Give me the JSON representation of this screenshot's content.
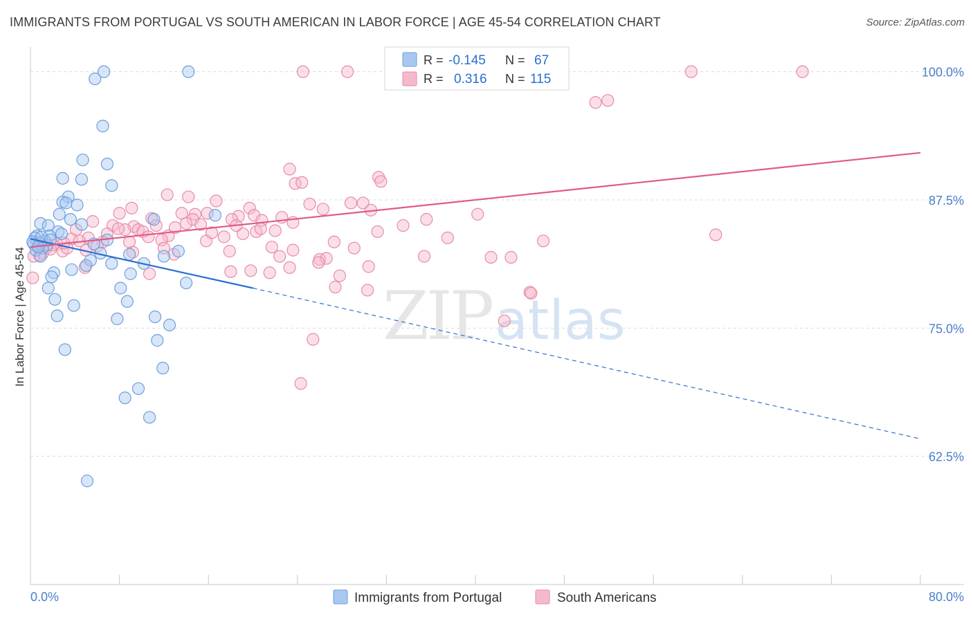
{
  "header": {
    "title": "IMMIGRANTS FROM PORTUGAL VS SOUTH AMERICAN IN LABOR FORCE | AGE 45-54 CORRELATION CHART",
    "source": "Source: ZipAtlas.com"
  },
  "watermark": {
    "zip": "ZIP",
    "atlas": "atlas"
  },
  "legend": {
    "r_label": "R =",
    "n_label": "N =",
    "rows": [
      {
        "r": "-0.145",
        "n": "67",
        "color": "#a9c8f0"
      },
      {
        "r": "0.316",
        "n": "115",
        "color": "#f6b8cc"
      }
    ]
  },
  "colors": {
    "blue_fill": "#a9c8f0",
    "blue_stroke": "#6c9fde",
    "blue_line": "#2a6fd1",
    "pink_fill": "#f6b8cc",
    "pink_stroke": "#e88aa8",
    "pink_line": "#e05a88",
    "grid": "#dcdcdc",
    "tick_text": "#4a7fc9"
  },
  "chart_data": {
    "type": "scatter",
    "title": "IMMIGRANTS FROM PORTUGAL VS SOUTH AMERICAN IN LABOR FORCE | AGE 45-54 CORRELATION CHART",
    "xlabel": "",
    "ylabel": "In Labor Force | Age 45-54",
    "xlim": [
      0,
      80
    ],
    "ylim": [
      50,
      102
    ],
    "x_tick_labels": [
      "0.0%",
      "80.0%"
    ],
    "y_ticks": [
      62.5,
      75.0,
      87.5,
      100.0
    ],
    "y_tick_labels": [
      "62.5%",
      "75.0%",
      "87.5%",
      "100.0%"
    ],
    "grid": true,
    "legend_position": "top-center",
    "series": [
      {
        "name": "Immigrants from Portugal",
        "r": -0.145,
        "n": 67,
        "trend": {
          "x": [
            0,
            20
          ],
          "y": [
            83.7,
            78.9
          ],
          "dashed_to": [
            80,
            64.2
          ]
        },
        "points": [
          [
            6.6,
            100
          ],
          [
            14.2,
            100
          ],
          [
            5.8,
            99.3
          ],
          [
            6.5,
            94.7
          ],
          [
            4.7,
            91.4
          ],
          [
            6.9,
            91.0
          ],
          [
            2.9,
            89.6
          ],
          [
            4.6,
            89.5
          ],
          [
            7.3,
            88.9
          ],
          [
            3.4,
            87.8
          ],
          [
            2.9,
            87.3
          ],
          [
            3.2,
            87.2
          ],
          [
            4.2,
            87.0
          ],
          [
            2.6,
            86.1
          ],
          [
            16.6,
            86.0
          ],
          [
            3.6,
            85.6
          ],
          [
            11.1,
            85.6
          ],
          [
            0.9,
            85.2
          ],
          [
            4.6,
            85.1
          ],
          [
            1.6,
            85.0
          ],
          [
            2.5,
            84.4
          ],
          [
            0.6,
            84.0
          ],
          [
            1.7,
            84.0
          ],
          [
            0.4,
            83.8
          ],
          [
            1.3,
            83.5
          ],
          [
            6.9,
            83.6
          ],
          [
            0.8,
            83.3
          ],
          [
            0.3,
            83.2
          ],
          [
            1.5,
            83.1
          ],
          [
            5.7,
            83.2
          ],
          [
            1.1,
            82.8
          ],
          [
            0.5,
            82.6
          ],
          [
            13.3,
            82.5
          ],
          [
            6.3,
            82.3
          ],
          [
            8.9,
            82.2
          ],
          [
            12.0,
            82.0
          ],
          [
            0.9,
            82.0
          ],
          [
            5.4,
            81.6
          ],
          [
            7.3,
            81.3
          ],
          [
            10.2,
            81.3
          ],
          [
            5.0,
            81.1
          ],
          [
            3.7,
            80.7
          ],
          [
            2.1,
            80.4
          ],
          [
            9.0,
            80.3
          ],
          [
            1.9,
            80.0
          ],
          [
            14.0,
            79.4
          ],
          [
            1.6,
            78.9
          ],
          [
            8.1,
            78.9
          ],
          [
            2.2,
            77.8
          ],
          [
            8.7,
            77.6
          ],
          [
            3.9,
            77.2
          ],
          [
            2.4,
            76.2
          ],
          [
            11.2,
            76.1
          ],
          [
            7.8,
            75.9
          ],
          [
            12.5,
            75.3
          ],
          [
            11.4,
            73.8
          ],
          [
            3.1,
            72.9
          ],
          [
            11.9,
            71.1
          ],
          [
            9.7,
            69.1
          ],
          [
            8.5,
            68.2
          ],
          [
            10.7,
            66.3
          ],
          [
            5.1,
            60.1
          ],
          [
            0.2,
            83.4
          ],
          [
            2.8,
            84.2
          ],
          [
            1.0,
            83.9
          ],
          [
            0.7,
            82.9
          ],
          [
            1.8,
            83.6
          ]
        ]
      },
      {
        "name": "South Americans",
        "r": 0.316,
        "n": 115,
        "trend": {
          "x": [
            0,
            80
          ],
          "y": [
            82.9,
            92.1
          ]
        },
        "points": [
          [
            24.5,
            100
          ],
          [
            28.5,
            100
          ],
          [
            32.6,
            100
          ],
          [
            59.4,
            100
          ],
          [
            69.4,
            100
          ],
          [
            37.0,
            99.0
          ],
          [
            51.9,
            97.2
          ],
          [
            50.8,
            97.0
          ],
          [
            23.3,
            90.5
          ],
          [
            31.3,
            89.7
          ],
          [
            23.8,
            89.1
          ],
          [
            24.4,
            89.2
          ],
          [
            31.5,
            89.3
          ],
          [
            12.3,
            88.0
          ],
          [
            14.2,
            87.8
          ],
          [
            16.7,
            87.4
          ],
          [
            25.1,
            87.1
          ],
          [
            28.8,
            87.2
          ],
          [
            29.9,
            87.2
          ],
          [
            9.1,
            86.7
          ],
          [
            13.6,
            86.2
          ],
          [
            14.8,
            86.1
          ],
          [
            15.9,
            86.2
          ],
          [
            19.7,
            86.7
          ],
          [
            26.3,
            86.6
          ],
          [
            20.1,
            86.0
          ],
          [
            18.7,
            85.9
          ],
          [
            22.6,
            85.8
          ],
          [
            10.9,
            85.7
          ],
          [
            14.6,
            85.6
          ],
          [
            18.1,
            85.6
          ],
          [
            20.8,
            85.5
          ],
          [
            23.6,
            85.3
          ],
          [
            35.6,
            85.6
          ],
          [
            5.6,
            85.4
          ],
          [
            7.4,
            85.0
          ],
          [
            9.3,
            84.9
          ],
          [
            11.3,
            85.0
          ],
          [
            15.3,
            85.1
          ],
          [
            8.5,
            84.6
          ],
          [
            9.7,
            84.6
          ],
          [
            6.9,
            84.2
          ],
          [
            10.1,
            84.4
          ],
          [
            19.1,
            84.2
          ],
          [
            20.3,
            84.4
          ],
          [
            22.0,
            84.5
          ],
          [
            12.4,
            84.0
          ],
          [
            17.4,
            83.9
          ],
          [
            5.2,
            83.8
          ],
          [
            3.7,
            83.7
          ],
          [
            4.4,
            83.5
          ],
          [
            6.5,
            83.4
          ],
          [
            8.9,
            83.4
          ],
          [
            11.8,
            83.6
          ],
          [
            15.8,
            83.5
          ],
          [
            27.3,
            83.4
          ],
          [
            29.1,
            82.8
          ],
          [
            21.7,
            82.9
          ],
          [
            31.2,
            84.4
          ],
          [
            37.5,
            83.8
          ],
          [
            46.1,
            83.5
          ],
          [
            61.6,
            84.1
          ],
          [
            2.4,
            83.2
          ],
          [
            1.5,
            82.9
          ],
          [
            1.1,
            82.3
          ],
          [
            2.9,
            82.5
          ],
          [
            3.3,
            82.8
          ],
          [
            0.8,
            82.1
          ],
          [
            0.3,
            82.0
          ],
          [
            17.9,
            82.5
          ],
          [
            23.6,
            82.6
          ],
          [
            12.9,
            82.2
          ],
          [
            9.2,
            82.4
          ],
          [
            35.4,
            82.0
          ],
          [
            41.4,
            81.9
          ],
          [
            43.2,
            81.9
          ],
          [
            26.0,
            81.7
          ],
          [
            26.6,
            81.8
          ],
          [
            25.9,
            81.4
          ],
          [
            23.3,
            80.9
          ],
          [
            30.4,
            81.0
          ],
          [
            18.0,
            80.5
          ],
          [
            19.8,
            80.6
          ],
          [
            21.5,
            80.4
          ],
          [
            27.8,
            80.1
          ],
          [
            10.7,
            80.3
          ],
          [
            4.9,
            80.9
          ],
          [
            0.2,
            79.9
          ],
          [
            27.4,
            79.0
          ],
          [
            30.3,
            78.7
          ],
          [
            44.9,
            78.5
          ],
          [
            45.0,
            78.4
          ],
          [
            42.6,
            75.7
          ],
          [
            25.4,
            73.9
          ],
          [
            24.3,
            69.6
          ],
          [
            7.9,
            84.7
          ],
          [
            13.0,
            84.8
          ],
          [
            4.1,
            84.6
          ],
          [
            10.6,
            83.9
          ],
          [
            16.3,
            84.3
          ],
          [
            20.7,
            84.7
          ],
          [
            6.0,
            83.0
          ],
          [
            2.0,
            83.1
          ],
          [
            14.0,
            85.2
          ],
          [
            30.6,
            86.5
          ],
          [
            3.0,
            83.3
          ],
          [
            5.0,
            82.6
          ],
          [
            18.5,
            85.0
          ],
          [
            22.4,
            82.0
          ],
          [
            40.2,
            86.1
          ],
          [
            33.5,
            85.0
          ],
          [
            1.8,
            82.7
          ],
          [
            0.6,
            83.4
          ],
          [
            8.0,
            86.2
          ],
          [
            12.0,
            82.8
          ]
        ]
      }
    ]
  },
  "bottom_legend": {
    "items": [
      {
        "label": "Immigrants from Portugal"
      },
      {
        "label": "South Americans"
      }
    ]
  },
  "axis": {
    "y_label": "In Labor Force | Age 45-54",
    "x_min_label": "0.0%",
    "x_max_label": "80.0%"
  }
}
